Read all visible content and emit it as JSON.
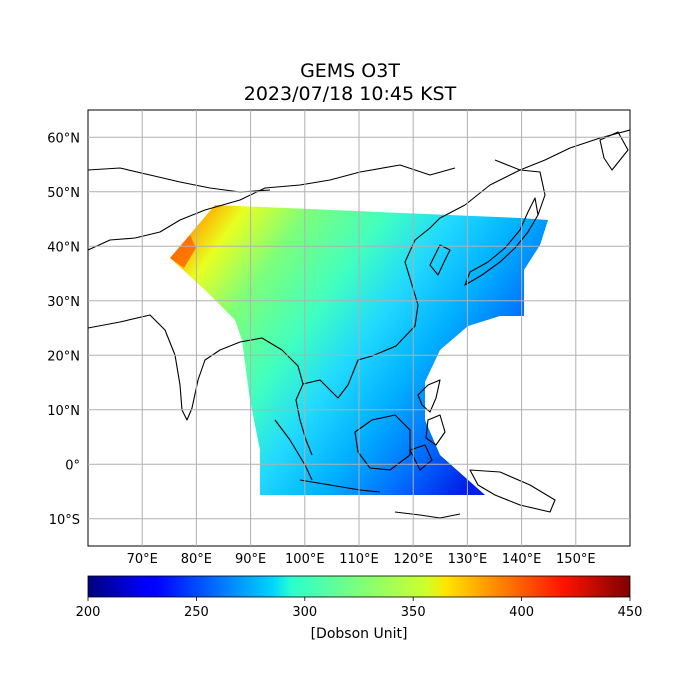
{
  "title": {
    "line1": "GEMS O3T",
    "line2": "2023/07/18 10:45 KST"
  },
  "map": {
    "lat_labels": [
      {
        "lat": 60,
        "label": "60°N"
      },
      {
        "lat": 50,
        "label": "50°N"
      },
      {
        "lat": 40,
        "label": "40°N"
      },
      {
        "lat": 30,
        "label": "30°N"
      },
      {
        "lat": 20,
        "label": "20°N"
      },
      {
        "lat": 10,
        "label": "10°N"
      },
      {
        "lat": 0,
        "label": "0°"
      },
      {
        "lat": -10,
        "label": "10°S"
      }
    ],
    "lon_labels": [
      {
        "lon": 70,
        "label": "70°E"
      },
      {
        "lon": 80,
        "label": "80°E"
      },
      {
        "lon": 90,
        "label": "90°E"
      },
      {
        "lon": 100,
        "label": "100°E"
      },
      {
        "lon": 110,
        "label": "110°E"
      },
      {
        "lon": 120,
        "label": "120°E"
      },
      {
        "lon": 130,
        "label": "130°E"
      },
      {
        "lon": 140,
        "label": "140°E"
      },
      {
        "lon": 150,
        "label": "150°E"
      }
    ],
    "lon_range": [
      60,
      160
    ],
    "lat_range": [
      -15,
      65
    ],
    "grid": true
  },
  "colorbar": {
    "colormap": "jet",
    "min": 200,
    "max": 450,
    "ticks": [
      200,
      250,
      300,
      350,
      400,
      450
    ],
    "label": "[Dobson Unit]"
  }
}
